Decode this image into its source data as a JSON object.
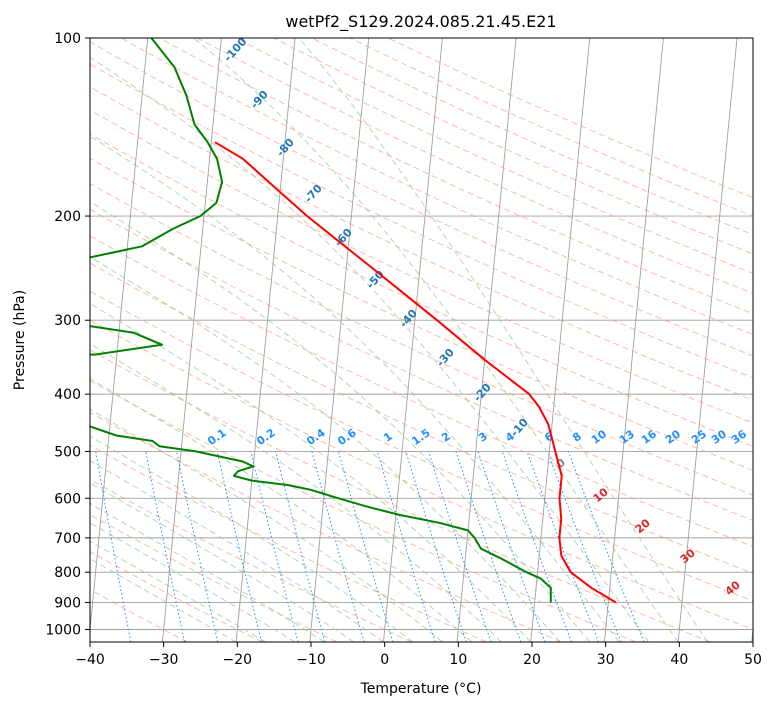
{
  "chart_data": {
    "type": "skew-t log-p",
    "title": "wetPf2_S129.2024.085.21.45.E21",
    "xlabel": "Temperature (°C)",
    "ylabel": "Pressure (hPa)",
    "xlim": [
      -40,
      50
    ],
    "ylim_hpa": [
      1050,
      100
    ],
    "x_ticks": [
      -40,
      -30,
      -20,
      -10,
      0,
      10,
      20,
      30,
      40,
      50
    ],
    "y_ticks": [
      1000,
      900,
      800,
      700,
      600,
      500,
      400,
      300,
      200,
      100
    ],
    "grid": true,
    "series": [
      {
        "key": "temperature",
        "color": "#ff0000",
        "points": [
          {
            "p": 900,
            "t": 31.0
          },
          {
            "p": 850,
            "t": 27.5
          },
          {
            "p": 800,
            "t": 24.5
          },
          {
            "p": 750,
            "t": 23.0
          },
          {
            "p": 700,
            "t": 22.5
          },
          {
            "p": 650,
            "t": 22.5
          },
          {
            "p": 600,
            "t": 22.0
          },
          {
            "p": 550,
            "t": 22.0
          },
          {
            "p": 500,
            "t": 20.8
          },
          {
            "p": 450,
            "t": 19.5
          },
          {
            "p": 420,
            "t": 18.0
          },
          {
            "p": 400,
            "t": 16.5
          },
          {
            "p": 380,
            "t": 14.0
          },
          {
            "p": 350,
            "t": 10.0
          },
          {
            "p": 300,
            "t": 3.0
          },
          {
            "p": 250,
            "t": -5.5
          },
          {
            "p": 200,
            "t": -16.0
          },
          {
            "p": 180,
            "t": -20.5
          },
          {
            "p": 160,
            "t": -25.5
          },
          {
            "p": 150,
            "t": -29.5
          }
        ]
      },
      {
        "key": "dewpoint",
        "color": "#008000",
        "points": [
          {
            "p": 900,
            "t": 22.2
          },
          {
            "p": 850,
            "t": 22.0
          },
          {
            "p": 820,
            "t": 20.5
          },
          {
            "p": 800,
            "t": 18.5
          },
          {
            "p": 760,
            "t": 15.0
          },
          {
            "p": 730,
            "t": 12.0
          },
          {
            "p": 700,
            "t": 11.0
          },
          {
            "p": 680,
            "t": 10.0
          },
          {
            "p": 660,
            "t": 6.0
          },
          {
            "p": 640,
            "t": 0.5
          },
          {
            "p": 620,
            "t": -4.0
          },
          {
            "p": 600,
            "t": -8.0
          },
          {
            "p": 580,
            "t": -12.0
          },
          {
            "p": 570,
            "t": -15.0
          },
          {
            "p": 560,
            "t": -20.0
          },
          {
            "p": 550,
            "t": -22.5
          },
          {
            "p": 540,
            "t": -22.0
          },
          {
            "p": 530,
            "t": -20.0
          },
          {
            "p": 520,
            "t": -21.5
          },
          {
            "p": 500,
            "t": -28.0
          },
          {
            "p": 490,
            "t": -33.0
          },
          {
            "p": 480,
            "t": -34.0
          },
          {
            "p": 470,
            "t": -39.0
          },
          {
            "p": 450,
            "t": -43.5
          },
          {
            "p": 435,
            "t": -44.0
          },
          {
            "p": 420,
            "t": -46.5
          },
          {
            "p": 410,
            "t": -49.0
          },
          {
            "p": 400,
            "t": -52.0
          },
          {
            "p": 390,
            "t": -70.0
          },
          {
            "p": 345,
            "t": -67.0
          },
          {
            "p": 343,
            "t": -43.0
          },
          {
            "p": 330,
            "t": -34.0
          },
          {
            "p": 315,
            "t": -38.0
          },
          {
            "p": 307,
            "t": -44.0
          },
          {
            "p": 300,
            "t": -45.0
          },
          {
            "p": 285,
            "t": -46.0
          },
          {
            "p": 265,
            "t": -48.5
          },
          {
            "p": 245,
            "t": -48.0
          },
          {
            "p": 235,
            "t": -45.0
          },
          {
            "p": 225,
            "t": -38.0
          },
          {
            "p": 210,
            "t": -34.0
          },
          {
            "p": 200,
            "t": -30.5
          },
          {
            "p": 190,
            "t": -28.5
          },
          {
            "p": 175,
            "t": -28.0
          },
          {
            "p": 160,
            "t": -29.0
          },
          {
            "p": 150,
            "t": -30.5
          },
          {
            "p": 140,
            "t": -32.5
          },
          {
            "p": 125,
            "t": -34.0
          },
          {
            "p": 112,
            "t": -36.0
          },
          {
            "p": 100,
            "t": -39.5
          }
        ]
      }
    ],
    "dry_adiabat_labels": [
      "-100",
      "-90",
      "-80",
      "-70",
      "-60",
      "-50",
      "-40",
      "-30",
      "-20",
      "-10"
    ],
    "mixing_ratio_labels": [
      "0.1",
      "0.2",
      "0.4",
      "0.6",
      "1",
      "1.5",
      "2",
      "3",
      "4",
      "6",
      "8",
      "10",
      "13",
      "16",
      "20",
      "25",
      "30",
      "36"
    ],
    "moist_adiabat_labels": [
      "0",
      "10",
      "20",
      "30",
      "40"
    ],
    "colors": {
      "temperature": "#ff0000",
      "dewpoint": "#008000",
      "dry_adiabat": "#ff8c69",
      "moist_adiabat": "#90c890",
      "mixing_ratio": "#1e90ff",
      "isotherm_grid": "#a0a0a0",
      "dry_label": "#1f77b4",
      "mixing_label": "#1e90ff",
      "moist_label": "#d62728",
      "moist_zero_label": "#808080"
    }
  }
}
